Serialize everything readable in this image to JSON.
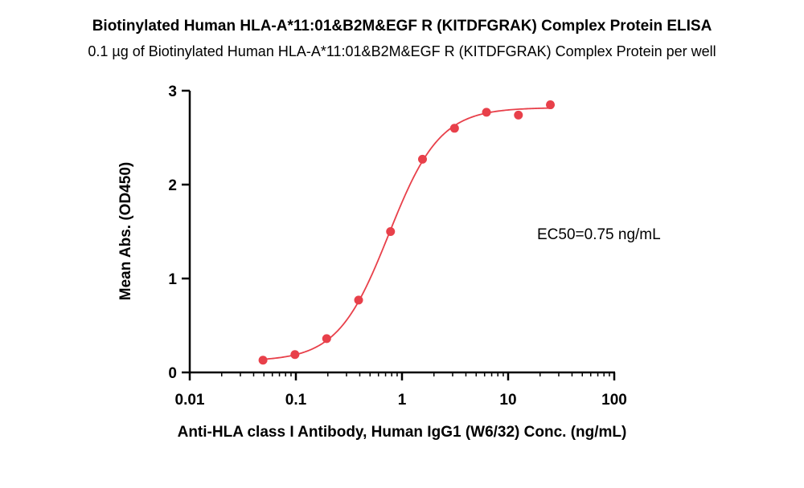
{
  "chart_data": {
    "type": "scatter",
    "title": "Biotinylated Human HLA-A*11:01&B2M&EGF R (KITDFGRAK) Complex Protein ELISA",
    "subtitle": "0.1 µg of Biotinylated Human HLA-A*11:01&B2M&EGF R (KITDFGRAK) Complex Protein per well",
    "xlabel": "Anti-HLA class I Antibody, Human IgG1 (W6/32) Conc. (ng/mL)",
    "ylabel": "Mean Abs. (OD450)",
    "x_scale": "log",
    "xlim": [
      0.01,
      100
    ],
    "ylim": [
      0,
      3
    ],
    "x_ticks": [
      0.01,
      0.1,
      1,
      10,
      100
    ],
    "x_tick_labels": [
      "0.01",
      "0.1",
      "1",
      "10",
      "100"
    ],
    "y_ticks": [
      0,
      1,
      2,
      3
    ],
    "y_tick_labels": [
      "0",
      "1",
      "2",
      "3"
    ],
    "grid": false,
    "color": "#e8404a",
    "annotation": "EC50=0.75 ng/mL",
    "points": {
      "x": [
        0.049,
        0.098,
        0.195,
        0.39,
        0.78,
        1.56,
        3.125,
        6.25,
        12.5,
        25
      ],
      "y": [
        0.13,
        0.19,
        0.36,
        0.77,
        1.5,
        2.27,
        2.6,
        2.77,
        2.74,
        2.85
      ]
    },
    "fit_curve": {
      "bottom": 0.12,
      "top": 2.82,
      "ec50": 0.75,
      "hill": 1.8
    }
  }
}
